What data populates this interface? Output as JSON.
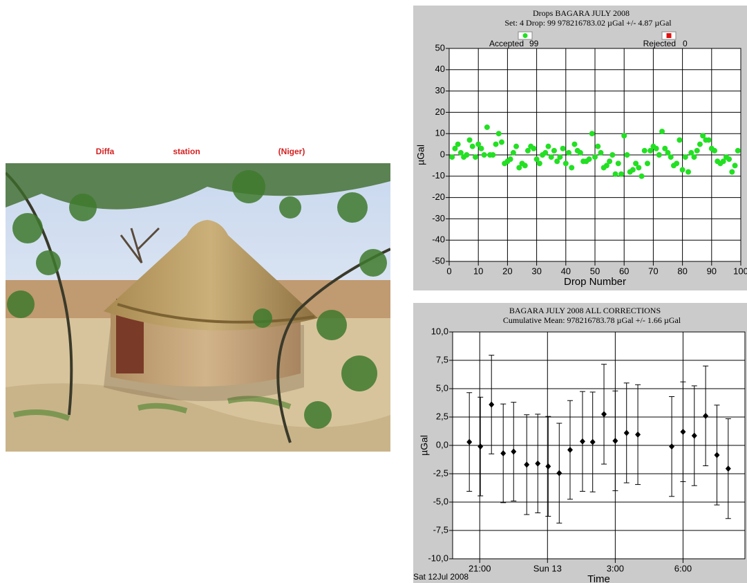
{
  "caption": [
    "Diffa",
    "station",
    "(Niger)"
  ],
  "chart_data": [
    {
      "type": "scatter",
      "title": "Drops   BAGARA JULY 2008",
      "subtitle": "Set:  4   Drop:  99    978216783.02 µGal +/- 4.87 µGal",
      "x_label": "Drop Number",
      "y_label": "µGal",
      "xlim": [
        0,
        100
      ],
      "xticks": [
        0,
        10,
        20,
        30,
        40,
        50,
        60,
        70,
        80,
        90,
        100
      ],
      "ylim": [
        -50,
        50
      ],
      "yticks": [
        -50,
        -40,
        -30,
        -20,
        -10,
        0,
        10,
        20,
        30,
        40,
        50
      ],
      "grid": true,
      "series": [
        {
          "name": "Accepted",
          "count": 99,
          "color": "#22e022",
          "x": [
            1,
            2,
            3,
            4,
            5,
            6,
            7,
            8,
            9,
            10,
            11,
            12,
            13,
            14,
            15,
            16,
            17,
            18,
            19,
            20,
            21,
            22,
            23,
            24,
            25,
            26,
            27,
            28,
            29,
            30,
            31,
            32,
            33,
            34,
            35,
            36,
            37,
            38,
            39,
            40,
            41,
            42,
            43,
            44,
            45,
            46,
            47,
            48,
            49,
            50,
            51,
            52,
            53,
            54,
            55,
            56,
            57,
            58,
            59,
            60,
            61,
            62,
            63,
            64,
            65,
            66,
            67,
            68,
            69,
            70,
            71,
            72,
            73,
            74,
            75,
            76,
            77,
            78,
            79,
            80,
            81,
            82,
            83,
            84,
            85,
            86,
            87,
            88,
            89,
            90,
            91,
            92,
            93,
            94,
            95,
            96,
            97,
            98,
            99
          ],
          "values": [
            -1,
            3,
            5,
            1,
            -1,
            0,
            7,
            4,
            -1,
            5,
            3,
            0,
            13,
            0,
            0,
            5,
            10,
            6,
            -4,
            -3,
            -2,
            1,
            4,
            -6,
            -4,
            -5,
            2,
            4,
            3,
            -2,
            -4,
            0,
            1,
            4,
            -1,
            2,
            -3,
            -1,
            3,
            -4,
            1,
            -6,
            5,
            2,
            1,
            -3,
            -3,
            -2,
            10,
            -1,
            4,
            1,
            -6,
            -5,
            -3,
            0,
            -9,
            -4,
            -9,
            9,
            0,
            -8,
            -7,
            -4,
            -6,
            -10,
            2,
            -4,
            2,
            4,
            3,
            0,
            11,
            3,
            1,
            -1,
            -5,
            -4,
            7,
            -7,
            -1,
            -8,
            1,
            -1,
            2,
            5,
            9,
            7,
            7,
            3,
            2,
            -3,
            -4,
            -3,
            -1,
            -2,
            -8,
            -5,
            2
          ]
        },
        {
          "name": "Rejected",
          "count": 0,
          "color": "#e01010",
          "x": [],
          "values": []
        }
      ]
    },
    {
      "type": "errorbar",
      "title": "BAGARA   JULY 2008   ALL CORRECTIONS",
      "subtitle": "Cumulative Mean:  978216783.78 µGal   +/- 1.66 µGal",
      "x_label": "Time",
      "y_label": "µGal",
      "x_start_label": "Sat 12Jul 2008",
      "xlim": [
        19.8,
        32.74
      ],
      "xticks": [
        {
          "value": 21,
          "label": "21:00"
        },
        {
          "value": 24,
          "label": "Sun 13"
        },
        {
          "value": 27,
          "label": "3:00"
        },
        {
          "value": 30,
          "label": "6:00"
        }
      ],
      "ylim": [
        -10,
        10
      ],
      "yticks": [
        {
          "value": -10,
          "label": "-10,0"
        },
        {
          "value": -7.5,
          "label": "-7,5"
        },
        {
          "value": -5,
          "label": "-5,0"
        },
        {
          "value": -2.5,
          "label": "-2,5"
        },
        {
          "value": 0,
          "label": "0,0"
        },
        {
          "value": 2.5,
          "label": "2,5"
        },
        {
          "value": 5,
          "label": "5,0"
        },
        {
          "value": 7.5,
          "label": "7,5"
        },
        {
          "value": 10,
          "label": "10,0"
        }
      ],
      "grid": true,
      "color": "#000000",
      "x": [
        20.54,
        21.03,
        21.52,
        22.04,
        22.5,
        23.08,
        23.57,
        24.03,
        24.52,
        25.0,
        25.55,
        26.0,
        26.5,
        27.0,
        27.5,
        28.0,
        29.5,
        30.0,
        30.5,
        31.0,
        31.5,
        32.0
      ],
      "values": [
        0.3,
        -0.1,
        3.6,
        -0.7,
        -0.55,
        -1.7,
        -1.6,
        -1.85,
        -2.45,
        -0.4,
        0.35,
        0.3,
        2.75,
        0.4,
        1.1,
        0.95,
        -0.1,
        1.2,
        0.85,
        2.6,
        -0.85,
        -2.05
      ],
      "errors": [
        4.35,
        4.35,
        4.35,
        4.35,
        4.35,
        4.4,
        4.35,
        4.4,
        4.4,
        4.35,
        4.4,
        4.4,
        4.4,
        4.4,
        4.4,
        4.4,
        4.4,
        4.4,
        4.4,
        4.4,
        4.4,
        4.4
      ]
    }
  ]
}
